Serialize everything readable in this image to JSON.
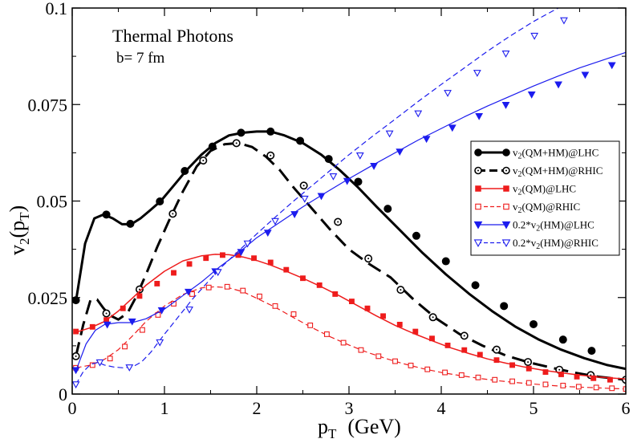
{
  "chart_data": {
    "type": "line",
    "title": "Thermal Photons",
    "subtitle": "b= 7 fm",
    "xlabel": {
      "main": "p",
      "sub": "T",
      "suffix": "(GeV)"
    },
    "ylabel": {
      "main": "v",
      "sub1": "2",
      "mid": "(p",
      "sub2": "T",
      "suffix": ")"
    },
    "xlim": [
      0,
      6
    ],
    "ylim": [
      0,
      0.1
    ],
    "xticks": [
      {
        "v": 0,
        "label": "0"
      },
      {
        "v": 1,
        "label": "1"
      },
      {
        "v": 2,
        "label": "2"
      },
      {
        "v": 3,
        "label": "3"
      },
      {
        "v": 4,
        "label": "4"
      },
      {
        "v": 5,
        "label": "5"
      },
      {
        "v": 6,
        "label": "6"
      }
    ],
    "yticks": [
      {
        "v": 0,
        "label": "0"
      },
      {
        "v": 0.025,
        "label": "0.025"
      },
      {
        "v": 0.05,
        "label": "0.05"
      },
      {
        "v": 0.075,
        "label": "0.075"
      },
      {
        "v": 0.1,
        "label": "0.1"
      }
    ],
    "grid": false,
    "legend_position": "right",
    "series": [
      {
        "key": "qmhm_lhc",
        "legend": {
          "pre": "v",
          "sub": "2",
          "post": "(QM+HM)@LHC"
        },
        "color": "#000000",
        "width": 3,
        "dash": "",
        "marker": "circle",
        "filled": true,
        "x": [
          0.04,
          0.14,
          0.24,
          0.34,
          0.44,
          0.54,
          0.64,
          0.74,
          0.84,
          0.96,
          1.1,
          1.24,
          1.4,
          1.55,
          1.7,
          1.85,
          2.0,
          2.15,
          2.3,
          2.5,
          2.7,
          2.9,
          3.1,
          3.3,
          3.55,
          3.8,
          4.05,
          4.3,
          4.55,
          4.8,
          5.05,
          5.3,
          5.55,
          5.8,
          6.0
        ],
        "y": [
          0.024,
          0.039,
          0.0455,
          0.0465,
          0.0455,
          0.044,
          0.044,
          0.0455,
          0.0475,
          0.05,
          0.054,
          0.058,
          0.062,
          0.065,
          0.067,
          0.0677,
          0.068,
          0.068,
          0.067,
          0.065,
          0.062,
          0.058,
          0.0535,
          0.0485,
          0.0425,
          0.0365,
          0.031,
          0.026,
          0.0215,
          0.0175,
          0.0142,
          0.0115,
          0.0093,
          0.0075,
          0.0065
        ],
        "markers_x": [
          0.04,
          0.37,
          0.63,
          0.95,
          1.22,
          1.52,
          1.83,
          2.15,
          2.47,
          2.78,
          3.1,
          3.42,
          3.73,
          4.05,
          4.37,
          4.68,
          5.0,
          5.32,
          5.63
        ],
        "markers_y": [
          0.0243,
          0.0465,
          0.0441,
          0.0499,
          0.0578,
          0.0641,
          0.0677,
          0.068,
          0.0656,
          0.0609,
          0.055,
          0.048,
          0.041,
          0.0344,
          0.0282,
          0.0228,
          0.0181,
          0.0141,
          0.0112
        ]
      },
      {
        "key": "qmhm_rhic",
        "legend": {
          "pre": "v",
          "sub": "2",
          "post": "(QM+HM)@RHIC"
        },
        "color": "#000000",
        "width": 3,
        "dash": "18,9",
        "marker": "circle",
        "filled": false,
        "x": [
          0.04,
          0.12,
          0.2,
          0.27,
          0.33,
          0.4,
          0.5,
          0.6,
          0.7,
          0.8,
          0.92,
          1.05,
          1.2,
          1.35,
          1.5,
          1.65,
          1.8,
          1.95,
          2.1,
          2.25,
          2.4,
          2.6,
          2.8,
          3.0,
          3.2,
          3.45,
          3.7,
          3.95,
          4.2,
          4.45,
          4.7,
          4.95,
          5.2,
          5.45,
          5.7,
          6.0
        ],
        "y": [
          0.0098,
          0.018,
          0.0245,
          0.0245,
          0.0225,
          0.0205,
          0.0193,
          0.021,
          0.0255,
          0.031,
          0.038,
          0.045,
          0.0525,
          0.059,
          0.063,
          0.0647,
          0.065,
          0.064,
          0.0615,
          0.058,
          0.0535,
          0.048,
          0.0425,
          0.0375,
          0.034,
          0.0302,
          0.0245,
          0.0195,
          0.0155,
          0.0125,
          0.01,
          0.0082,
          0.0068,
          0.0055,
          0.0045,
          0.0037
        ],
        "markers_x": [
          0.04,
          0.37,
          0.73,
          1.09,
          1.42,
          1.78,
          2.15,
          2.51,
          2.88,
          3.21,
          3.56,
          3.91,
          4.25,
          4.6,
          4.94,
          5.28,
          5.62,
          6.0
        ],
        "markers_y": [
          0.0098,
          0.0209,
          0.0271,
          0.0467,
          0.0605,
          0.065,
          0.0618,
          0.054,
          0.0446,
          0.0351,
          0.027,
          0.0199,
          0.0151,
          0.0115,
          0.0083,
          0.0063,
          0.0049,
          0.0037
        ]
      },
      {
        "key": "qm_lhc",
        "legend": {
          "pre": "v",
          "sub": "2",
          "post": "(QM)@LHC"
        },
        "color": "#ee1c1c",
        "width": 1.5,
        "dash": "",
        "marker": "square",
        "filled": true,
        "x": [
          0.04,
          0.2,
          0.35,
          0.5,
          0.65,
          0.8,
          1.0,
          1.2,
          1.4,
          1.55,
          1.7,
          1.85,
          2.0,
          2.15,
          2.3,
          2.5,
          2.7,
          2.9,
          3.1,
          3.3,
          3.5,
          3.7,
          3.9,
          4.1,
          4.3,
          4.5,
          4.7,
          4.9,
          5.1,
          5.3,
          5.5,
          5.7,
          6.0
        ],
        "y": [
          0.016,
          0.0172,
          0.0188,
          0.0215,
          0.0248,
          0.0282,
          0.0318,
          0.0345,
          0.0358,
          0.0362,
          0.0361,
          0.0355,
          0.0346,
          0.0334,
          0.032,
          0.03,
          0.0278,
          0.0254,
          0.0228,
          0.0202,
          0.0178,
          0.0157,
          0.0138,
          0.012,
          0.0105,
          0.0091,
          0.008,
          0.007,
          0.0062,
          0.0055,
          0.0049,
          0.0044,
          0.0039
        ],
        "markers_x": [
          0.04,
          0.22,
          0.37,
          0.55,
          0.73,
          0.92,
          1.1,
          1.27,
          1.45,
          1.63,
          1.8,
          1.97,
          2.15,
          2.32,
          2.5,
          2.68,
          2.85,
          3.03,
          3.2,
          3.37,
          3.55,
          3.72,
          3.9,
          4.07,
          4.25,
          4.42,
          4.6,
          4.77,
          4.95,
          5.13,
          5.3,
          5.47,
          5.65,
          5.83
        ],
        "markers_y": [
          0.0162,
          0.0174,
          0.0192,
          0.0222,
          0.0254,
          0.0286,
          0.0314,
          0.0337,
          0.0352,
          0.036,
          0.036,
          0.0352,
          0.0341,
          0.0322,
          0.03,
          0.0282,
          0.0259,
          0.024,
          0.0222,
          0.0202,
          0.018,
          0.0162,
          0.0144,
          0.0126,
          0.0114,
          0.0102,
          0.0088,
          0.0075,
          0.0066,
          0.0057,
          0.0051,
          0.0045,
          0.0041,
          0.0037
        ]
      },
      {
        "key": "qm_rhic",
        "legend": {
          "pre": "v",
          "sub": "2",
          "post": "(QM)@RHIC"
        },
        "color": "#ee1c1c",
        "width": 1.2,
        "dash": "7,4",
        "marker": "square",
        "filled": false,
        "x": [
          0.04,
          0.2,
          0.35,
          0.5,
          0.65,
          0.8,
          1.0,
          1.2,
          1.4,
          1.55,
          1.7,
          1.85,
          2.0,
          2.2,
          2.4,
          2.6,
          2.8,
          3.0,
          3.2,
          3.4,
          3.6,
          3.8,
          4.0,
          4.2,
          4.4,
          4.6,
          4.8,
          5.0,
          5.2,
          5.4,
          5.6,
          5.8,
          6.0
        ],
        "y": [
          0.0068,
          0.0075,
          0.009,
          0.0115,
          0.015,
          0.0188,
          0.0228,
          0.0258,
          0.0275,
          0.0278,
          0.0275,
          0.0265,
          0.0248,
          0.0225,
          0.0198,
          0.0172,
          0.0148,
          0.0127,
          0.0108,
          0.0092,
          0.0078,
          0.0066,
          0.0056,
          0.0048,
          0.0041,
          0.0035,
          0.003,
          0.0026,
          0.0022,
          0.0019,
          0.0017,
          0.0015,
          0.0013
        ],
        "markers_x": [
          0.04,
          0.22,
          0.41,
          0.57,
          0.76,
          0.93,
          1.1,
          1.3,
          1.48,
          1.68,
          1.85,
          2.03,
          2.2,
          2.4,
          2.58,
          2.76,
          2.94,
          3.13,
          3.32,
          3.5,
          3.67,
          3.85,
          4.04,
          4.22,
          4.4,
          4.58,
          4.77,
          4.95,
          5.13,
          5.32,
          5.49,
          5.68,
          5.85,
          6.0
        ],
        "markers_y": [
          0.0068,
          0.0075,
          0.0092,
          0.0123,
          0.0166,
          0.0205,
          0.0234,
          0.0259,
          0.0276,
          0.0278,
          0.0268,
          0.0253,
          0.0228,
          0.0207,
          0.0178,
          0.0155,
          0.0133,
          0.0114,
          0.0098,
          0.0085,
          0.0074,
          0.0064,
          0.0056,
          0.0049,
          0.0043,
          0.0037,
          0.0033,
          0.0029,
          0.0025,
          0.0022,
          0.0019,
          0.0017,
          0.0015,
          0.0013
        ]
      },
      {
        "key": "hm_lhc",
        "legend": {
          "pre": "0.2*v",
          "sub": "2",
          "post": "(HM)@LHC"
        },
        "color": "#1c1cee",
        "width": 1.2,
        "dash": "",
        "marker": "tri-down",
        "filled": true,
        "x": [
          0.04,
          0.15,
          0.25,
          0.35,
          0.5,
          0.65,
          0.8,
          1.0,
          1.2,
          1.4,
          1.6,
          1.8,
          2.0,
          2.25,
          2.5,
          2.75,
          3.0,
          3.25,
          3.5,
          3.75,
          4.0,
          4.25,
          4.5,
          4.75,
          5.0,
          5.25,
          5.5,
          5.75,
          6.0
        ],
        "y": [
          0.006,
          0.013,
          0.0165,
          0.018,
          0.0185,
          0.0185,
          0.0195,
          0.022,
          0.0255,
          0.029,
          0.033,
          0.0365,
          0.0405,
          0.0445,
          0.0485,
          0.0522,
          0.0558,
          0.0592,
          0.0625,
          0.0658,
          0.0688,
          0.0718,
          0.0746,
          0.0772,
          0.0798,
          0.0822,
          0.0845,
          0.0865,
          0.0885
        ],
        "markers_x": [
          0.04,
          0.38,
          0.65,
          0.97,
          1.26,
          1.55,
          1.83,
          2.12,
          2.41,
          2.7,
          2.98,
          3.27,
          3.55,
          3.84,
          4.12,
          4.41,
          4.7,
          4.98,
          5.27,
          5.56,
          5.85
        ],
        "markers_y": [
          0.0062,
          0.018,
          0.0188,
          0.0217,
          0.0265,
          0.0318,
          0.0368,
          0.0418,
          0.0466,
          0.0513,
          0.0552,
          0.0591,
          0.0628,
          0.0661,
          0.069,
          0.072,
          0.0749,
          0.0776,
          0.0802,
          0.0827,
          0.0852
        ]
      },
      {
        "key": "hm_rhic",
        "legend": {
          "pre": "0.2*v",
          "sub": "2",
          "post": "(HM)@RHIC"
        },
        "color": "#1c1cee",
        "width": 1.2,
        "dash": "7,4",
        "marker": "tri-down",
        "filled": false,
        "x": [
          0.04,
          0.12,
          0.2,
          0.28,
          0.35,
          0.45,
          0.55,
          0.65,
          0.75,
          0.85,
          1.0,
          1.15,
          1.3,
          1.45,
          1.6,
          1.8,
          2.0,
          2.2,
          2.4,
          2.6,
          2.8,
          3.0,
          3.25,
          3.5,
          3.75,
          4.0,
          4.25,
          4.5,
          4.75,
          5.0,
          5.25,
          5.5,
          5.8
        ],
        "y": [
          0.0025,
          0.0058,
          0.0077,
          0.0082,
          0.0075,
          0.007,
          0.0068,
          0.007,
          0.0083,
          0.0108,
          0.0155,
          0.02,
          0.0245,
          0.0285,
          0.0325,
          0.037,
          0.0415,
          0.0458,
          0.05,
          0.054,
          0.058,
          0.062,
          0.0667,
          0.0712,
          0.0758,
          0.0802,
          0.0845,
          0.0888,
          0.0928,
          0.0965,
          0.0998,
          0.1025,
          0.1055
        ],
        "markers_x": [
          0.04,
          0.3,
          0.62,
          0.95,
          1.27,
          1.58,
          1.9,
          2.2,
          2.52,
          2.83,
          3.12,
          3.44,
          3.75,
          4.07,
          4.39,
          4.7,
          5.01,
          5.33
        ],
        "markers_y": [
          0.0025,
          0.0082,
          0.0069,
          0.0134,
          0.0219,
          0.0316,
          0.039,
          0.0448,
          0.0506,
          0.0564,
          0.0618,
          0.0675,
          0.0727,
          0.078,
          0.0832,
          0.0882,
          0.0928,
          0.0968
        ]
      }
    ]
  }
}
